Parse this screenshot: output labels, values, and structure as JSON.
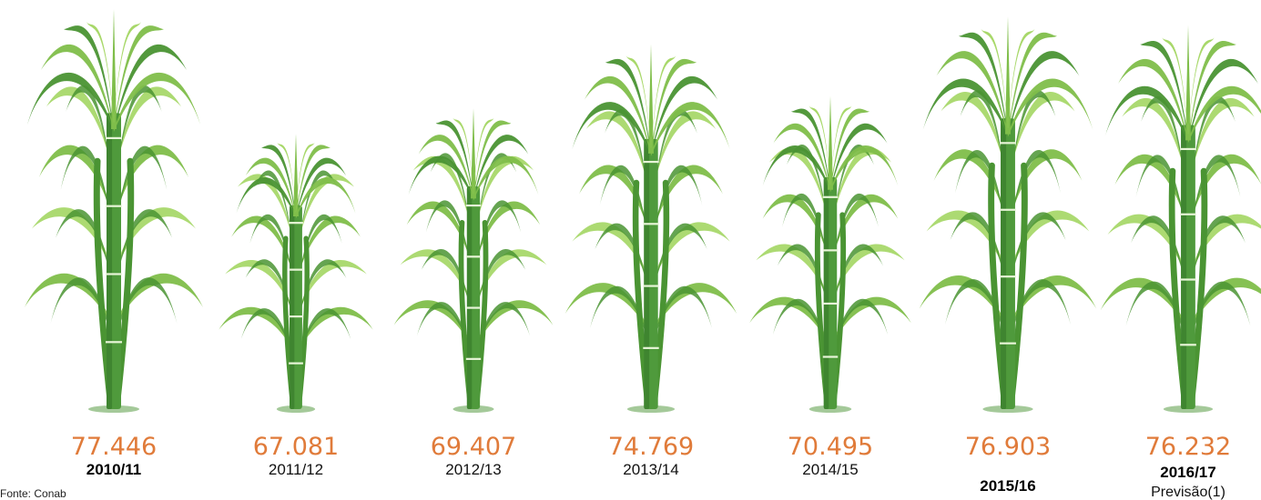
{
  "chart_data": {
    "type": "bar",
    "categories": [
      "2010/11",
      "2011/12",
      "2012/13",
      "2013/14",
      "2014/15",
      "2015/16",
      "2016/17"
    ],
    "values": [
      77.446,
      67.081,
      69.407,
      74.769,
      70.495,
      76.903,
      76.232
    ],
    "value_labels": [
      "77.446",
      "67.081",
      "69.407",
      "74.769",
      "70.495",
      "76.903",
      "76.232"
    ],
    "category_notes": [
      "",
      "",
      "",
      "",
      "",
      "",
      "Previsão(1)"
    ],
    "bold_categories": [
      true,
      false,
      false,
      false,
      false,
      true,
      true
    ],
    "source": "Fonte: Conab"
  },
  "colors": {
    "value_text": "#e07b3a",
    "stalk": "#4f9a3c",
    "stalk_dark": "#3f8530",
    "node": "#e8f5d8",
    "leaf": "#7fbe4a",
    "leaf_dark": "#4a9433",
    "leaf_light": "#a8d86a"
  }
}
